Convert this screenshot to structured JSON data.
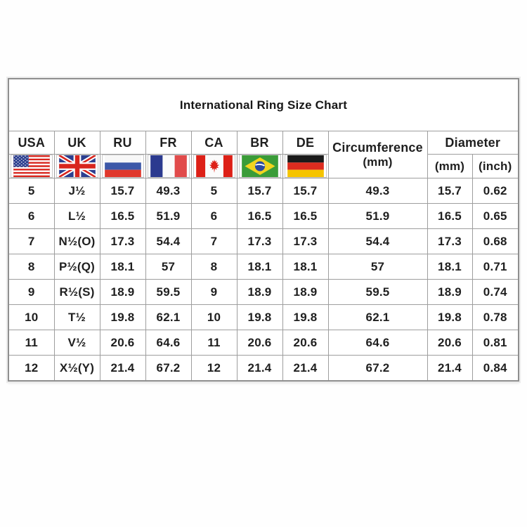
{
  "table": {
    "title": "International Ring Size Chart",
    "header": {
      "usa": "USA",
      "uk": "UK",
      "ru": "RU",
      "fr": "FR",
      "ca": "CA",
      "br": "BR",
      "de": "DE",
      "circumference_line1": "Circumference",
      "circumference_line2": "(mm)",
      "diameter": "Diameter",
      "diameter_mm": "(mm)",
      "diameter_inch": "(inch)"
    },
    "flag_icons": [
      "usa-flag",
      "uk-flag",
      "russia-flag",
      "france-flag",
      "canada-flag",
      "brazil-flag",
      "germany-flag"
    ]
  },
  "chart_data": {
    "type": "table",
    "title": "International Ring Size Chart",
    "columns": [
      "USA",
      "UK",
      "RU",
      "FR",
      "CA",
      "BR",
      "DE",
      "Circumference (mm)",
      "Diameter (mm)",
      "Diameter (inch)"
    ],
    "rows": [
      [
        "5",
        "J½",
        "15.7",
        "49.3",
        "5",
        "15.7",
        "15.7",
        "49.3",
        "15.7",
        "0.62"
      ],
      [
        "6",
        "L½",
        "16.5",
        "51.9",
        "6",
        "16.5",
        "16.5",
        "51.9",
        "16.5",
        "0.65"
      ],
      [
        "7",
        "N½(O)",
        "17.3",
        "54.4",
        "7",
        "17.3",
        "17.3",
        "54.4",
        "17.3",
        "0.68"
      ],
      [
        "8",
        "P½(Q)",
        "18.1",
        "57",
        "8",
        "18.1",
        "18.1",
        "57",
        "18.1",
        "0.71"
      ],
      [
        "9",
        "R½(S)",
        "18.9",
        "59.5",
        "9",
        "18.9",
        "18.9",
        "59.5",
        "18.9",
        "0.74"
      ],
      [
        "10",
        "T½",
        "19.8",
        "62.1",
        "10",
        "19.8",
        "19.8",
        "62.1",
        "19.8",
        "0.78"
      ],
      [
        "11",
        "V½",
        "20.6",
        "64.6",
        "11",
        "20.6",
        "20.6",
        "64.6",
        "20.6",
        "0.81"
      ],
      [
        "12",
        "X½(Y)",
        "21.4",
        "67.2",
        "12",
        "21.4",
        "21.4",
        "67.2",
        "21.4",
        "0.84"
      ]
    ]
  },
  "colors": {
    "table_border": "#9e9e9e",
    "text": "#1f1f1f",
    "flag_red": "#d8251d",
    "flag_navy": "#2c3f8f",
    "russia_blue": "#3d58a8",
    "brazil_green": "#3a9c38",
    "brazil_yellow": "#f2d41f",
    "brazil_blue": "#2b4aa0",
    "germany_red": "#dd2c1f",
    "germany_gold": "#f5c400"
  }
}
